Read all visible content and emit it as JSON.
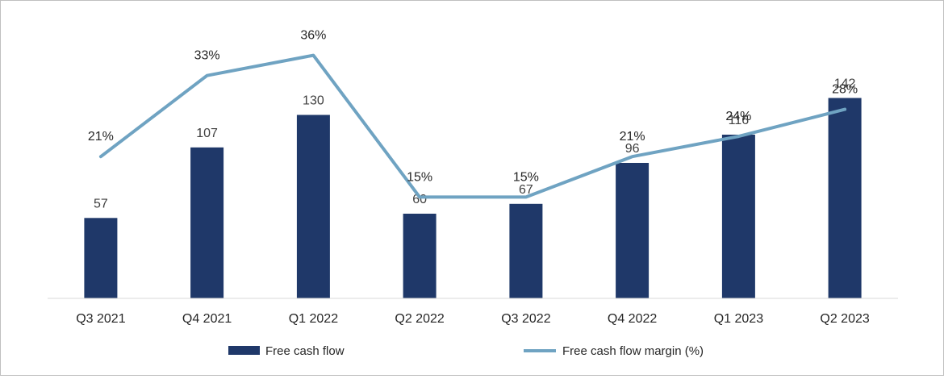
{
  "chart_data": {
    "type": "bar",
    "title": "",
    "xlabel": "",
    "ylabel": "",
    "categories": [
      "Q3 2021",
      "Q4 2021",
      "Q1 2022",
      "Q2 2022",
      "Q3 2022",
      "Q4 2022",
      "Q1 2023",
      "Q2 2023"
    ],
    "series": [
      {
        "name": "Free cash flow",
        "type": "bar",
        "values": [
          57,
          107,
          130,
          60,
          67,
          96,
          116,
          142
        ],
        "labels": [
          "57",
          "107",
          "130",
          "60",
          "67",
          "96",
          "116",
          "142"
        ],
        "color": "#1f3869"
      },
      {
        "name": "Free cash flow margin  (%)",
        "type": "line",
        "values": [
          21,
          33,
          36,
          15,
          15,
          21,
          24,
          28
        ],
        "labels": [
          "21%",
          "33%",
          "36%",
          "15%",
          "15%",
          "21%",
          "24%",
          "28%"
        ],
        "color": "#6fa3c2"
      }
    ],
    "ylim_bars": [
      0,
      160
    ],
    "ylim_line": [
      0,
      43
    ],
    "grid": false,
    "legend_position": "bottom"
  }
}
